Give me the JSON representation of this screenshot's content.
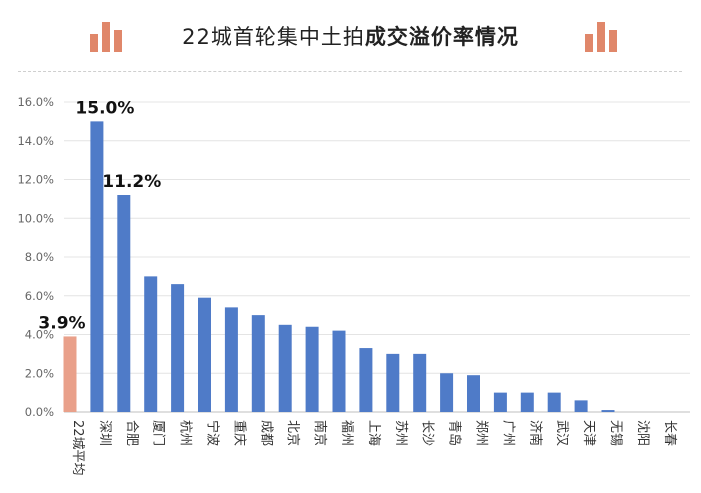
{
  "header": {
    "title_normal": "22城首轮集中土拍",
    "title_bold": "成交溢价率情况",
    "accent_color": "#e0876a"
  },
  "chart_data": {
    "type": "bar",
    "title": "22城首轮集中土拍成交溢价率情况",
    "xlabel": "",
    "ylabel": "",
    "categories": [
      "22城平均",
      "深圳",
      "合肥",
      "厦门",
      "杭州",
      "宁波",
      "重庆",
      "成都",
      "北京",
      "南京",
      "福州",
      "上海",
      "苏州",
      "长沙",
      "青岛",
      "郑州",
      "广州",
      "济南",
      "武汉",
      "天津",
      "无锡",
      "沈阳",
      "长春"
    ],
    "values": [
      3.9,
      15.0,
      11.2,
      7.0,
      6.6,
      5.9,
      5.4,
      5.0,
      4.5,
      4.4,
      4.2,
      3.3,
      3.0,
      3.0,
      2.0,
      1.9,
      1.0,
      1.0,
      1.0,
      0.6,
      0.1,
      0.0,
      0.0
    ],
    "ylim": [
      0,
      16
    ],
    "yticks": [
      "0.0%",
      "2.0%",
      "4.0%",
      "6.0%",
      "8.0%",
      "10.0%",
      "12.0%",
      "14.0%",
      "16.0%"
    ],
    "ytick_values": [
      0,
      2,
      4,
      6,
      8,
      10,
      12,
      14,
      16
    ],
    "data_labels": [
      {
        "index": 0,
        "text": "3.9%"
      },
      {
        "index": 1,
        "text": "15.0%"
      },
      {
        "index": 2,
        "text": "11.2%"
      }
    ],
    "colors": {
      "average_bar": "#e9a08a",
      "city_bar": "#4f7bc8",
      "grid": "#e4e4e4",
      "axis": "#bfbfbf"
    },
    "grid": true,
    "legend": "none"
  }
}
